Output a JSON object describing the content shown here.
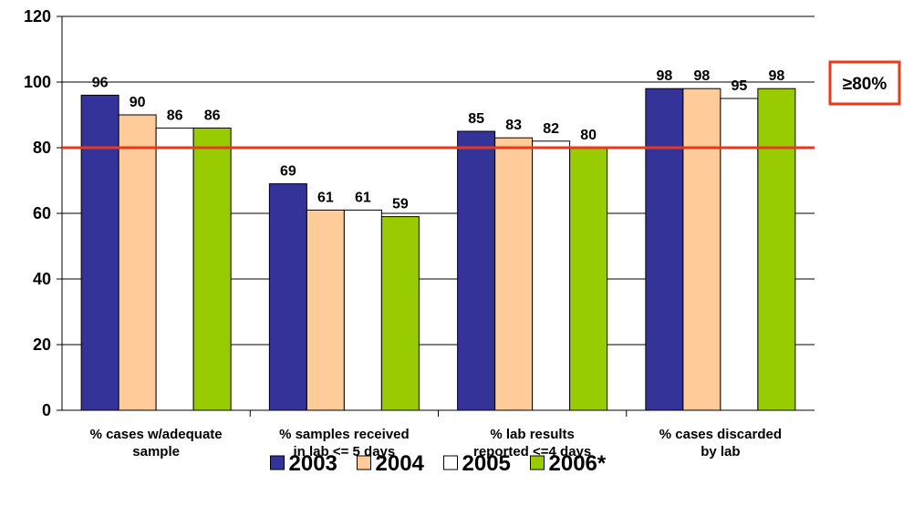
{
  "chart_data": {
    "type": "bar",
    "categories": [
      [
        "% cases w/adequate",
        "sample"
      ],
      [
        "% samples received",
        "in lab <= 5 days"
      ],
      [
        "% lab results",
        "reported <=4 days"
      ],
      [
        "% cases discarded",
        "by lab"
      ]
    ],
    "series": [
      {
        "name": "2003",
        "color": "#333399",
        "values": [
          96,
          69,
          85,
          98
        ]
      },
      {
        "name": "2004",
        "color": "#FFCC99",
        "values": [
          90,
          61,
          83,
          98
        ]
      },
      {
        "name": "2005",
        "color": "#FFFFFF",
        "values": [
          86,
          61,
          82,
          95
        ]
      },
      {
        "name": "2006*",
        "color": "#99CC00",
        "values": [
          86,
          59,
          80,
          98
        ]
      }
    ],
    "ylim": [
      0,
      120
    ],
    "yticks": [
      0,
      20,
      40,
      60,
      80,
      100,
      120
    ],
    "grid": true,
    "legend": "bottom",
    "threshold": {
      "value": 80,
      "color": "#E8391D",
      "label": "≥80%"
    }
  }
}
